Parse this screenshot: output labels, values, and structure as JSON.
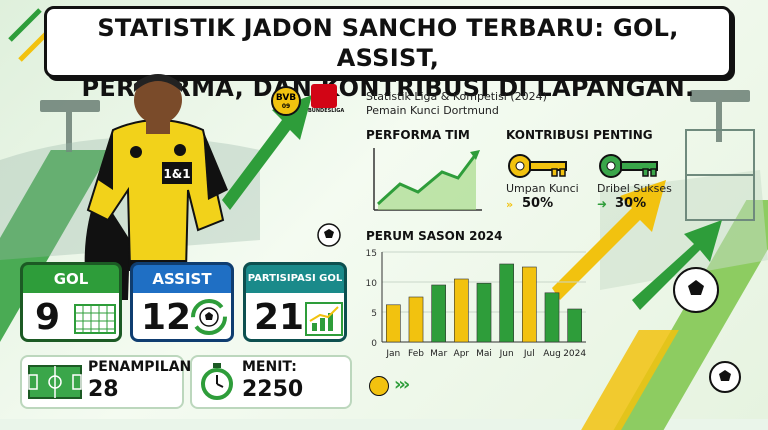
{
  "title": {
    "line1": "STATISTIK JADON SANCHO TERBARU: GOL, ASSIST,",
    "line2": "PERFORMA, DAN KONTRIBUSI DI LAPANGAN."
  },
  "logos": {
    "bvb": "BVB",
    "bvb_year": "09",
    "bundesliga": "BUNDESLIGA"
  },
  "shirt": {
    "sponsor": "1&1"
  },
  "subtitle": {
    "line1": "Statistik Liga & Kompetisi (2024)",
    "line2": "Pemain Kunci Dortmund"
  },
  "performa": {
    "heading": "PERFORMA TIM"
  },
  "kontribusi": {
    "heading": "KONTRIBUSI PENTING",
    "items": [
      {
        "label": "Umpan Kunci",
        "value": "50%",
        "icon": "key-icon",
        "color": "#f2c20f"
      },
      {
        "label": "Dribel Sukses",
        "value": "30%",
        "icon": "key-icon",
        "color": "#3aa64a"
      }
    ]
  },
  "stats": {
    "gol": {
      "label": "GOL",
      "value": "9",
      "icon": "goal-net-icon"
    },
    "assist": {
      "label": "ASSIST",
      "value": "12",
      "icon": "ball-cycle-icon"
    },
    "partisipasi": {
      "label": "PARTISIPASI GOL",
      "value": "21",
      "icon": "bar-chart-icon"
    }
  },
  "penampilan": {
    "label": "PENAMPILAN:",
    "value": "28",
    "icon": "pitch-icon"
  },
  "menit": {
    "label": "MENIT:",
    "value": "2250",
    "icon": "stopwatch-icon"
  },
  "colors": {
    "yellow": "#f2c20f",
    "green": "#2e9d3a",
    "blue": "#1f6fc4",
    "teal": "#1a8a8a"
  },
  "chart_data": {
    "type": "bar",
    "title": "PERUM SASON 2024",
    "categories": [
      "Jan",
      "Feb",
      "Mar",
      "Apr",
      "Mai",
      "Jun",
      "Jul",
      "Aug",
      "2024"
    ],
    "values": [
      6.2,
      7.5,
      9.5,
      10.5,
      9.8,
      13,
      12.5,
      8.2,
      5.5
    ],
    "yticks": [
      "0",
      "5",
      "10",
      "15"
    ],
    "ylim": [
      0,
      15
    ],
    "colors": [
      "#f2c20f",
      "#f2c20f",
      "#2e9d3a",
      "#f2c20f",
      "#2e9d3a",
      "#2e9d3a",
      "#f2c20f",
      "#2e9d3a",
      "#2e9d3a"
    ],
    "grid": true
  }
}
